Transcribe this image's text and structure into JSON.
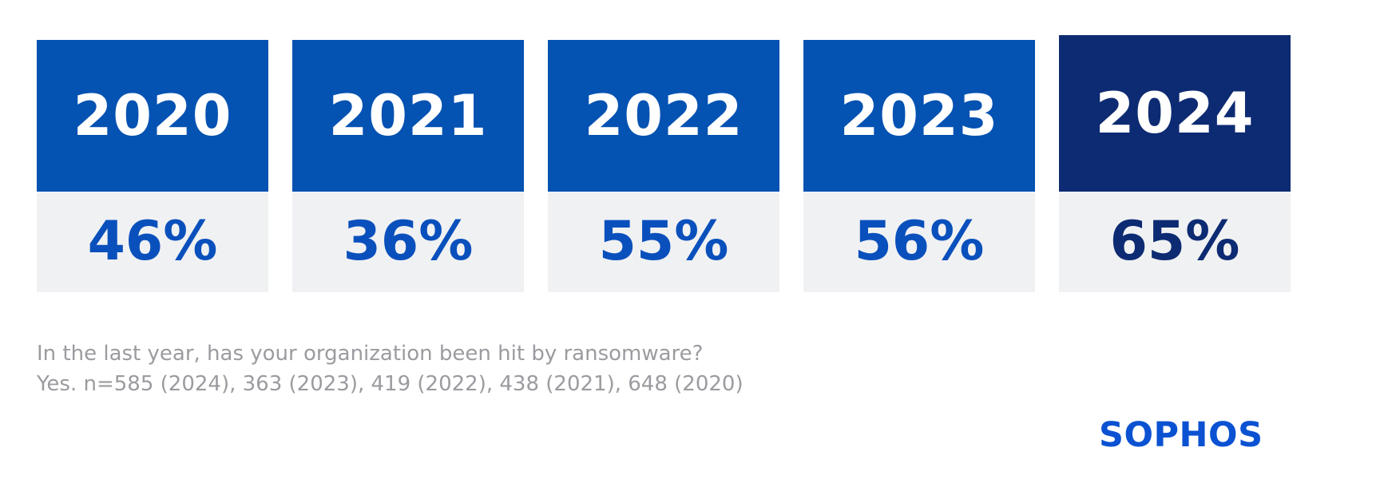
{
  "chart_data": {
    "type": "bar",
    "categories": [
      "2020",
      "2021",
      "2022",
      "2023",
      "2024"
    ],
    "values": [
      46,
      36,
      55,
      56,
      65
    ],
    "unit": "%",
    "highlight_category": "2024",
    "title": "",
    "xlabel": "",
    "ylabel": "",
    "legend": "none",
    "annotations": [
      "In the last year, has your organization been hit by ransomware?",
      "Yes. n=585 (2024), 363 (2023), 419 (2022), 438 (2021), 648 (2020)"
    ],
    "sample_sizes": {
      "2024": 585,
      "2023": 363,
      "2022": 419,
      "2021": 438,
      "2020": 648
    }
  },
  "cards": [
    {
      "year": "2020",
      "value": "46%"
    },
    {
      "year": "2021",
      "value": "36%"
    },
    {
      "year": "2022",
      "value": "55%"
    },
    {
      "year": "2023",
      "value": "56%"
    },
    {
      "year": "2024",
      "value": "65%"
    }
  ],
  "caption": {
    "line1": "In the last year, has your organization been hit by ransomware?",
    "line2": "Yes. n=585 (2024), 363 (2023), 419 (2022), 438 (2021), 648 (2020)"
  },
  "branding": {
    "logo_text": "SOPHOS"
  },
  "colors": {
    "header_blue": "#0452b2",
    "header_navy": "#0d2b72",
    "body_gray": "#f0f1f3",
    "value_blue": "#0a50bc",
    "caption_gray": "#9b9ba0",
    "logo_blue": "#0b52d2",
    "year_text": "#ffffff",
    "background": "#ffffff"
  }
}
